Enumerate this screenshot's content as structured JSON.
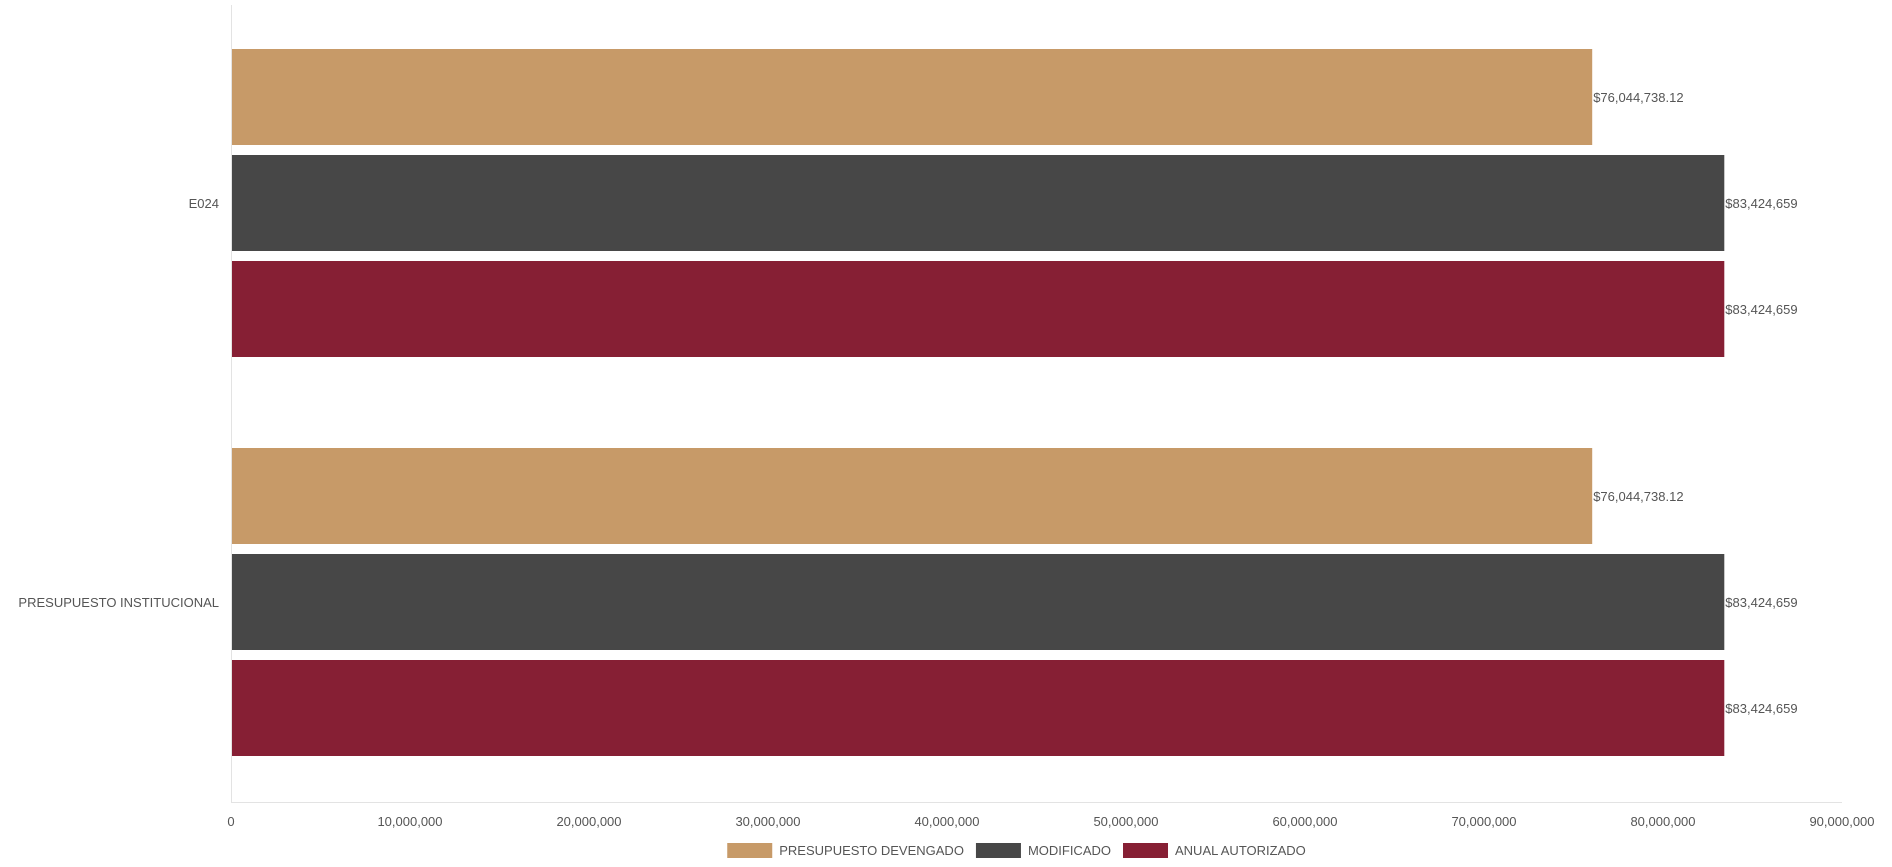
{
  "chart_data": {
    "type": "bar",
    "orientation": "horizontal",
    "categories": [
      "E024",
      "PRESUPUESTO INSTITUCIONAL"
    ],
    "series": [
      {
        "name": "PRESUPUESTO DEVENGADO",
        "color": "#C79A68",
        "values": [
          76044738.12,
          76044738.12
        ],
        "value_labels": [
          "$76,044,738.12",
          "$76,044,738.12"
        ]
      },
      {
        "name": "MODIFICADO",
        "color": "#474747",
        "values": [
          83424659,
          83424659
        ],
        "value_labels": [
          "$83,424,659",
          "$83,424,659"
        ]
      },
      {
        "name": "ANUAL AUTORIZADO",
        "color": "#861F34",
        "values": [
          83424659,
          83424659
        ],
        "value_labels": [
          "$83,424,659",
          "$83,424,659"
        ]
      }
    ],
    "xlim": [
      0,
      90000000
    ],
    "x_ticks": [
      0,
      10000000,
      20000000,
      30000000,
      40000000,
      50000000,
      60000000,
      70000000,
      80000000,
      90000000
    ],
    "x_tick_labels": [
      "0",
      "10,000,000",
      "20,000,000",
      "30,000,000",
      "40,000,000",
      "50,000,000",
      "60,000,000",
      "70,000,000",
      "80,000,000",
      "90,000,000"
    ],
    "title": "",
    "xlabel": "",
    "ylabel": "",
    "grid": false,
    "legend_position": "bottom-center"
  }
}
